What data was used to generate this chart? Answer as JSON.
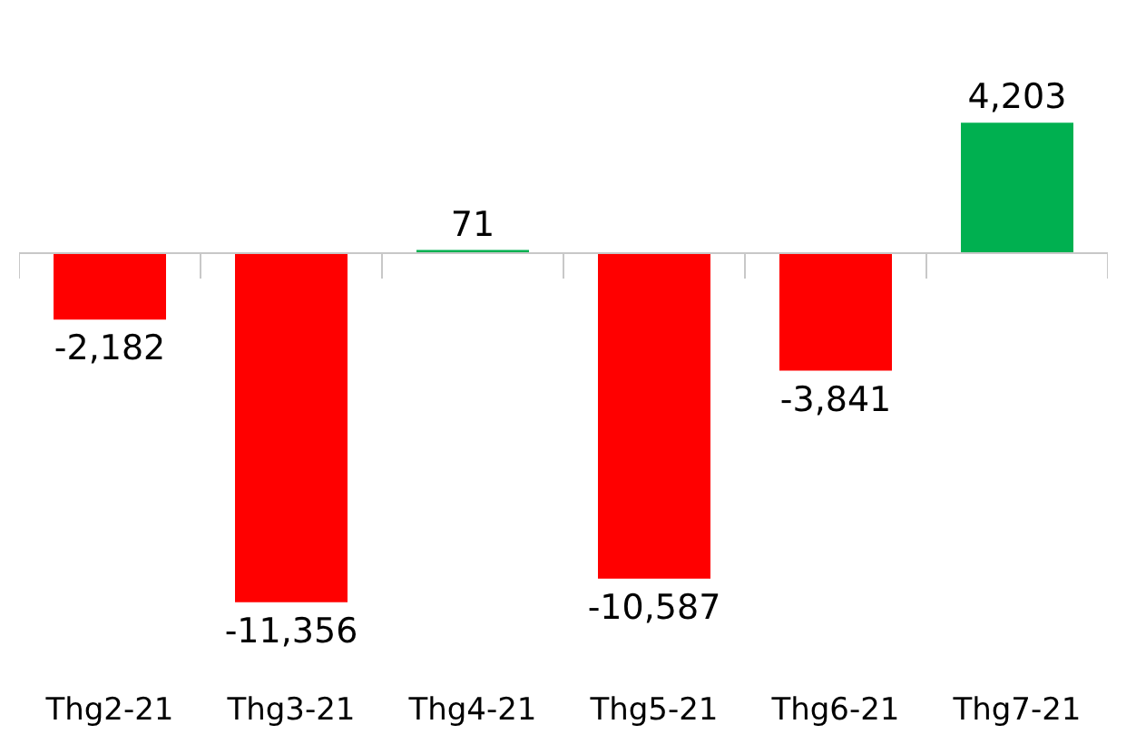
{
  "chart_data": {
    "type": "bar",
    "categories": [
      "Thg2-21",
      "Thg3-21",
      "Thg4-21",
      "Thg5-21",
      "Thg6-21",
      "Thg7-21"
    ],
    "values": [
      -2182,
      -11356,
      71,
      -10587,
      -3841,
      4203
    ],
    "colors": [
      "#ff0000",
      "#ff0000",
      "#00b050",
      "#ff0000",
      "#ff0000",
      "#00b050"
    ],
    "value_labels": [
      "-2,182",
      "-11,356",
      "71",
      "-10,587",
      "-3,841",
      "4,203"
    ]
  }
}
